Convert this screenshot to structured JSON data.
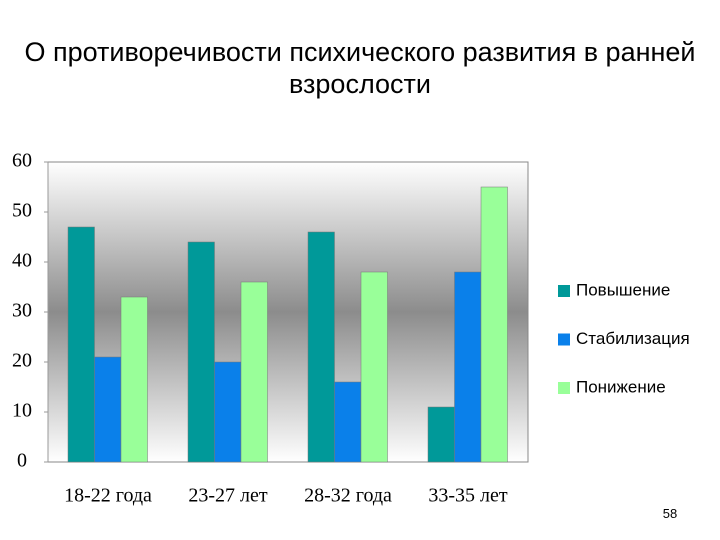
{
  "chart_data": {
    "type": "bar",
    "title": "О противоречивости психического развития в ранней взрослости",
    "categories": [
      "18-22 года",
      "23-27 лет",
      "28-32 года",
      "33-35 лет"
    ],
    "series": [
      {
        "name": "Повышение",
        "color": "#009999",
        "values": [
          47,
          44,
          46,
          11
        ]
      },
      {
        "name": "Стабилизация",
        "color": "#0a80ea",
        "values": [
          21,
          20,
          16,
          38
        ]
      },
      {
        "name": "Понижение",
        "color": "#99ff99",
        "values": [
          33,
          36,
          38,
          55
        ]
      }
    ],
    "ylim": [
      0,
      60
    ],
    "yticks": [
      0,
      10,
      20,
      30,
      40,
      50,
      60
    ],
    "grid": false,
    "legend": "right"
  },
  "slide_number": "58"
}
